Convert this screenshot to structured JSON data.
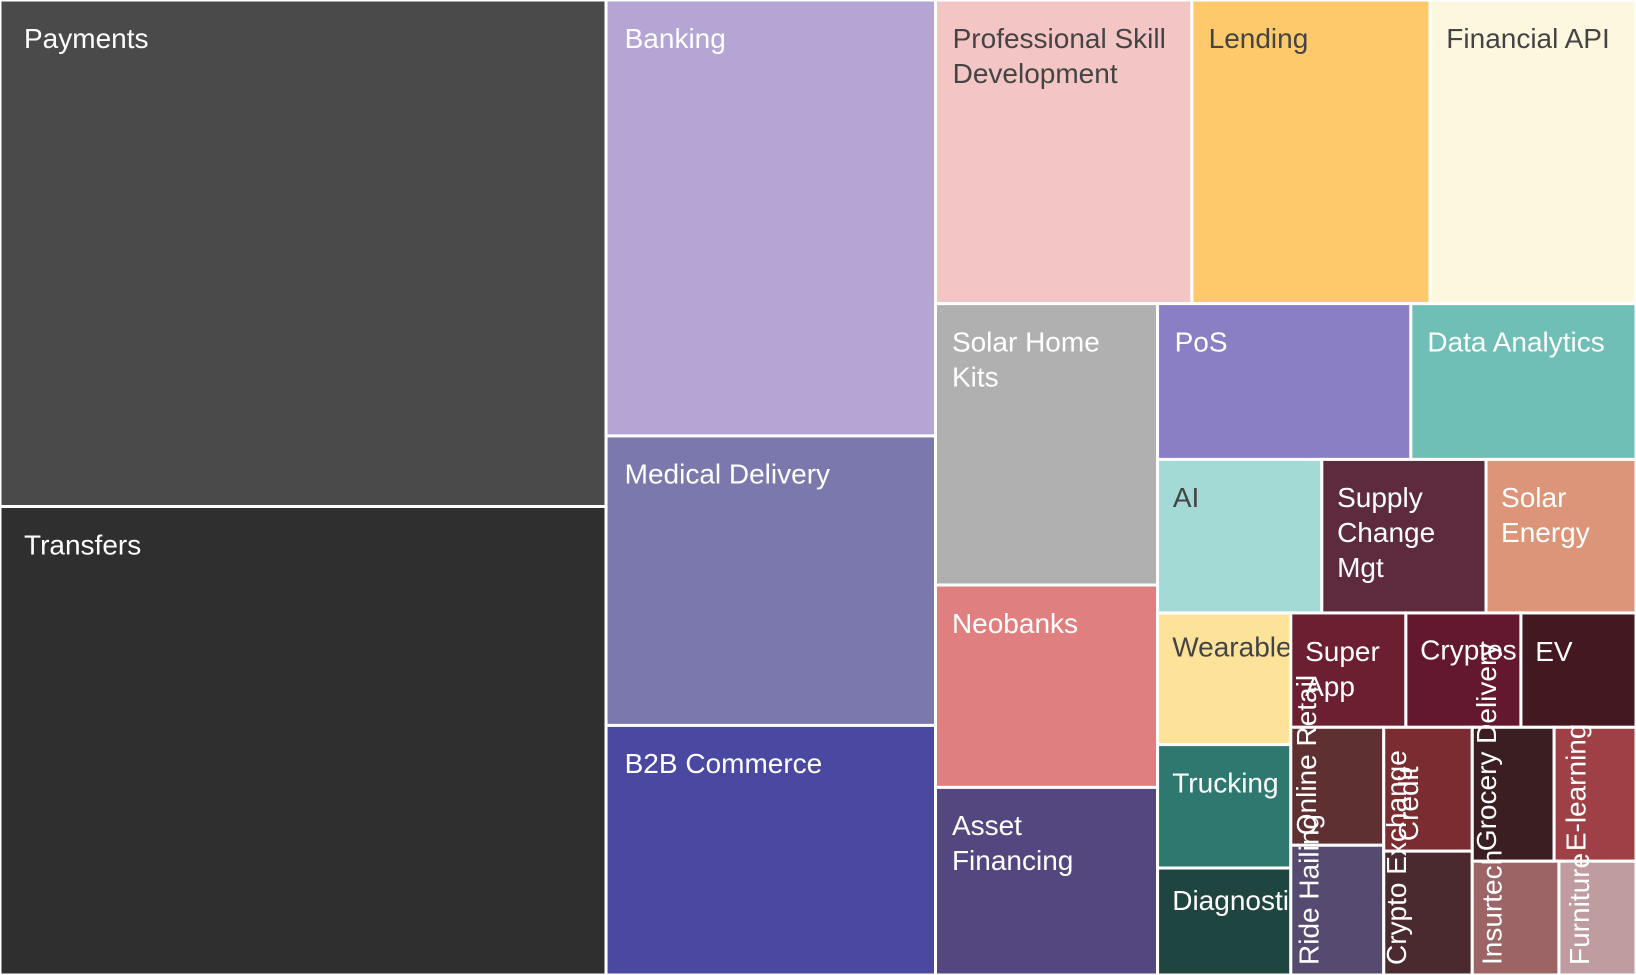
{
  "chart_data": {
    "type": "treemap",
    "categories": [
      "Payments",
      "Transfers",
      "Banking",
      "Medical Delivery",
      "B2B Commerce",
      "Professional Skill Development",
      "Lending",
      "Financial API",
      "Solar Home Kits",
      "Neobanks",
      "Asset Financing",
      "PoS",
      "Data Analytics",
      "AI",
      "Supply Change Mgt",
      "Solar Energy",
      "Wearables",
      "Trucking",
      "Diagnostics",
      "Super App",
      "Cryptos",
      "EV",
      "Online Retail",
      "Ride Hailing",
      "Credit",
      "Crypto Exchange",
      "Grocery Delivery",
      "E-learning",
      "Insurtech",
      "Furniture"
    ],
    "values": [
      280,
      259,
      131,
      87,
      75,
      71,
      66,
      57,
      57,
      41,
      38,
      36,
      32,
      23,
      23,
      21,
      16,
      15,
      13,
      12,
      12,
      12,
      10,
      11,
      10,
      10,
      10,
      10,
      9,
      8
    ],
    "colors": [
      "#4a4a4a",
      "#2f2f2f",
      "#b5a5d5",
      "#7a78ad",
      "#4a48a0",
      "#f4c5c5",
      "#fdc96a",
      "#fef7e0",
      "#b0b0b0",
      "#e07f7f",
      "#54477f",
      "#8a7ec4",
      "#6fbfb7",
      "#a4dad5",
      "#5e2a3e",
      "#dd9579",
      "#fde39a",
      "#2e7870",
      "#1f4541",
      "#6b1f30",
      "#641830",
      "#431820",
      "#5e3032",
      "#564a70",
      "#7a2c30",
      "#4a2a2e",
      "#3a1e22",
      "#9e4046",
      "#9c6464",
      "#bf9ca0"
    ]
  }
}
